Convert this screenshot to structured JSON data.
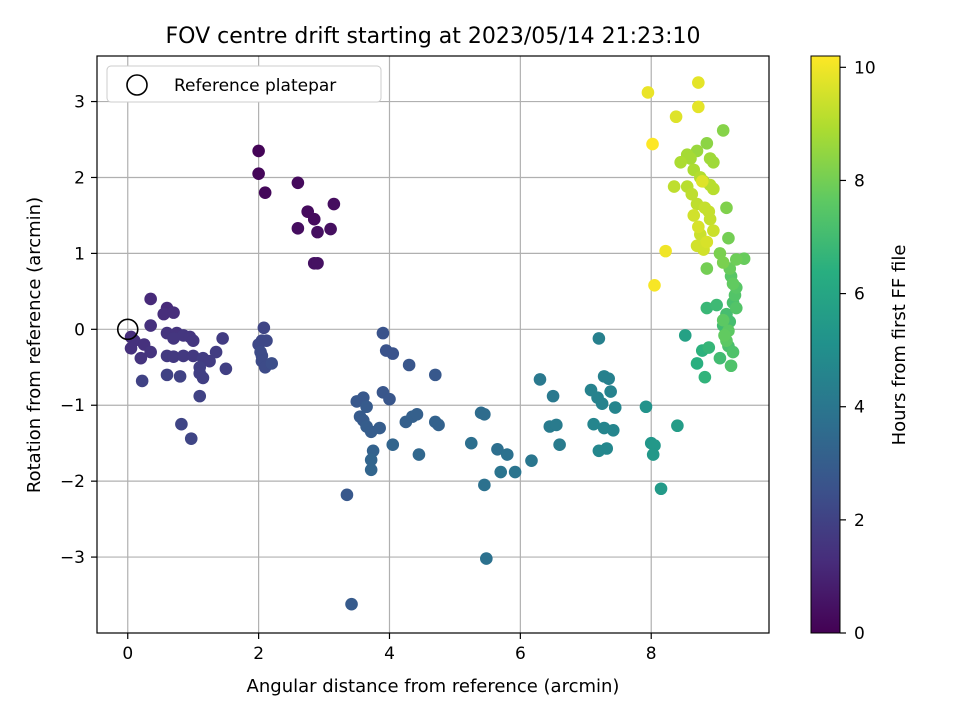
{
  "chart_data": {
    "type": "scatter",
    "title": "FOV centre drift starting at 2023/05/14 21:23:10",
    "xlabel": "Angular distance from reference (arcmin)",
    "ylabel": "Rotation from reference (arcmin)",
    "xlim": [
      -0.47,
      9.8
    ],
    "ylim": [
      -4.0,
      3.6
    ],
    "x_ticks": [
      0,
      2,
      4,
      6,
      8
    ],
    "y_ticks": [
      -3,
      -2,
      -1,
      0,
      1,
      2,
      3
    ],
    "x_tick_labels": [
      "0",
      "2",
      "4",
      "6",
      "8"
    ],
    "y_tick_labels": [
      "−3",
      "−2",
      "−1",
      "0",
      "1",
      "2",
      "3"
    ],
    "grid": true,
    "legend": {
      "placement": "top-left",
      "label": "Reference platepar"
    },
    "reference_point": {
      "x": 0,
      "y": 0
    },
    "colorbar": {
      "label": "Hours from first FF file",
      "range": [
        0,
        10.2
      ],
      "ticks": [
        0,
        2,
        4,
        6,
        8,
        10
      ],
      "tick_labels": [
        "0",
        "2",
        "4",
        "6",
        "8",
        "10"
      ],
      "colormap": "viridis"
    },
    "points": [
      [
        2.0,
        2.35,
        0.1
      ],
      [
        2.0,
        2.05,
        0.15
      ],
      [
        2.1,
        1.8,
        0.2
      ],
      [
        2.6,
        1.93,
        0.25
      ],
      [
        2.75,
        1.55,
        0.3
      ],
      [
        2.85,
        1.45,
        0.3
      ],
      [
        3.15,
        1.65,
        0.35
      ],
      [
        2.6,
        1.33,
        0.35
      ],
      [
        2.9,
        1.28,
        0.4
      ],
      [
        3.1,
        1.32,
        0.4
      ],
      [
        2.85,
        0.87,
        0.45
      ],
      [
        2.9,
        0.87,
        0.45
      ],
      [
        0.35,
        0.4,
        1.2
      ],
      [
        0.6,
        0.28,
        1.2
      ],
      [
        0.55,
        0.2,
        1.3
      ],
      [
        0.7,
        0.22,
        1.3
      ],
      [
        0.05,
        -0.1,
        1.3
      ],
      [
        0.1,
        -0.15,
        1.4
      ],
      [
        0.05,
        -0.25,
        1.4
      ],
      [
        0.25,
        -0.2,
        1.4
      ],
      [
        0.35,
        0.05,
        1.4
      ],
      [
        0.35,
        -0.3,
        1.5
      ],
      [
        0.2,
        -0.38,
        1.5
      ],
      [
        0.6,
        -0.05,
        1.5
      ],
      [
        0.75,
        -0.05,
        1.5
      ],
      [
        0.85,
        -0.08,
        1.6
      ],
      [
        0.95,
        -0.1,
        1.6
      ],
      [
        0.7,
        -0.12,
        1.6
      ],
      [
        1.0,
        -0.15,
        1.6
      ],
      [
        0.6,
        -0.35,
        1.7
      ],
      [
        0.7,
        -0.36,
        1.7
      ],
      [
        0.85,
        -0.35,
        1.7
      ],
      [
        1.0,
        -0.35,
        1.7
      ],
      [
        1.15,
        -0.38,
        1.8
      ],
      [
        1.25,
        -0.42,
        1.8
      ],
      [
        1.35,
        -0.3,
        1.8
      ],
      [
        1.45,
        -0.12,
        1.8
      ],
      [
        1.5,
        -0.52,
        1.9
      ],
      [
        1.1,
        -0.5,
        1.9
      ],
      [
        1.1,
        -0.58,
        1.9
      ],
      [
        1.15,
        -0.64,
        1.9
      ],
      [
        0.6,
        -0.6,
        2.0
      ],
      [
        0.8,
        -0.62,
        2.0
      ],
      [
        0.22,
        -0.68,
        2.0
      ],
      [
        1.1,
        -0.88,
        2.0
      ],
      [
        0.82,
        -1.25,
        2.1
      ],
      [
        0.97,
        -1.44,
        2.1
      ],
      [
        2.08,
        0.02,
        2.1
      ],
      [
        2.05,
        -0.15,
        2.2
      ],
      [
        2.12,
        -0.15,
        2.2
      ],
      [
        2.0,
        -0.2,
        2.2
      ],
      [
        2.03,
        -0.3,
        2.3
      ],
      [
        2.05,
        -0.35,
        2.3
      ],
      [
        2.05,
        -0.42,
        2.3
      ],
      [
        2.1,
        -0.5,
        2.3
      ],
      [
        2.2,
        -0.45,
        2.4
      ],
      [
        3.9,
        -0.05,
        2.6
      ],
      [
        3.95,
        -0.28,
        2.6
      ],
      [
        4.05,
        -0.32,
        2.6
      ],
      [
        4.3,
        -0.47,
        2.7
      ],
      [
        3.9,
        -0.83,
        2.7
      ],
      [
        4.0,
        -0.92,
        2.7
      ],
      [
        4.7,
        -0.6,
        2.8
      ],
      [
        3.5,
        -0.95,
        2.8
      ],
      [
        3.6,
        -0.9,
        2.8
      ],
      [
        3.65,
        -1.02,
        2.9
      ],
      [
        3.55,
        -1.15,
        2.9
      ],
      [
        3.6,
        -1.2,
        2.9
      ],
      [
        3.65,
        -1.28,
        3.0
      ],
      [
        3.72,
        -1.35,
        3.0
      ],
      [
        3.85,
        -1.3,
        3.0
      ],
      [
        4.25,
        -1.22,
        3.1
      ],
      [
        4.35,
        -1.15,
        3.1
      ],
      [
        4.42,
        -1.12,
        3.1
      ],
      [
        4.7,
        -1.22,
        3.2
      ],
      [
        4.75,
        -1.26,
        3.2
      ],
      [
        3.75,
        -1.6,
        3.2
      ],
      [
        3.72,
        -1.72,
        3.3
      ],
      [
        3.72,
        -1.85,
        3.3
      ],
      [
        4.05,
        -1.52,
        3.3
      ],
      [
        4.45,
        -1.65,
        3.4
      ],
      [
        3.35,
        -2.18,
        2.8
      ],
      [
        3.42,
        -3.62,
        2.9
      ],
      [
        5.4,
        -1.1,
        3.6
      ],
      [
        5.45,
        -1.12,
        3.6
      ],
      [
        5.25,
        -1.5,
        3.7
      ],
      [
        5.65,
        -1.58,
        3.7
      ],
      [
        5.8,
        -1.65,
        3.8
      ],
      [
        5.45,
        -2.05,
        3.8
      ],
      [
        5.7,
        -1.88,
        3.9
      ],
      [
        5.92,
        -1.88,
        3.9
      ],
      [
        6.17,
        -1.73,
        4.0
      ],
      [
        5.48,
        -3.02,
        3.8
      ],
      [
        6.3,
        -0.66,
        4.1
      ],
      [
        6.5,
        -0.88,
        4.1
      ],
      [
        6.45,
        -1.28,
        4.2
      ],
      [
        6.55,
        -1.26,
        4.2
      ],
      [
        6.6,
        -1.52,
        4.2
      ],
      [
        7.2,
        -0.12,
        4.4
      ],
      [
        7.28,
        -0.62,
        4.4
      ],
      [
        7.35,
        -0.65,
        4.4
      ],
      [
        7.08,
        -0.8,
        4.5
      ],
      [
        7.18,
        -0.9,
        4.5
      ],
      [
        7.25,
        -0.98,
        4.5
      ],
      [
        7.38,
        -0.82,
        4.5
      ],
      [
        7.45,
        -1.03,
        4.6
      ],
      [
        7.12,
        -1.25,
        4.6
      ],
      [
        7.28,
        -1.3,
        4.6
      ],
      [
        7.42,
        -1.33,
        4.6
      ],
      [
        7.2,
        -1.6,
        4.7
      ],
      [
        7.32,
        -1.57,
        4.7
      ],
      [
        7.92,
        -1.02,
        5.2
      ],
      [
        8.0,
        -1.5,
        5.3
      ],
      [
        8.05,
        -1.53,
        5.4
      ],
      [
        8.03,
        -1.65,
        5.4
      ],
      [
        8.15,
        -2.1,
        5.5
      ],
      [
        8.4,
        -1.27,
        5.6
      ],
      [
        8.52,
        -0.08,
        5.8
      ],
      [
        8.7,
        -0.45,
        6.4
      ],
      [
        8.78,
        -0.28,
        6.5
      ],
      [
        8.82,
        -0.63,
        6.6
      ],
      [
        8.88,
        -0.24,
        6.7
      ],
      [
        8.85,
        0.28,
        6.8
      ],
      [
        9.0,
        0.32,
        6.9
      ],
      [
        9.05,
        -0.38,
        7.0
      ],
      [
        9.1,
        0.05,
        7.0
      ],
      [
        9.15,
        0.2,
        7.1
      ],
      [
        9.2,
        0.1,
        7.1
      ],
      [
        9.25,
        0.35,
        7.2
      ],
      [
        9.18,
        -0.22,
        7.2
      ],
      [
        9.22,
        -0.48,
        7.3
      ],
      [
        9.25,
        -0.3,
        7.3
      ],
      [
        9.3,
        0.28,
        7.4
      ],
      [
        9.28,
        0.45,
        7.4
      ],
      [
        9.3,
        0.55,
        7.5
      ],
      [
        9.22,
        0.7,
        7.5
      ],
      [
        9.18,
        -0.02,
        7.6
      ],
      [
        9.15,
        -0.15,
        7.6
      ],
      [
        9.1,
        0.12,
        7.6
      ],
      [
        9.12,
        -0.08,
        7.7
      ],
      [
        9.25,
        0.6,
        7.7
      ],
      [
        9.2,
        0.8,
        7.8
      ],
      [
        9.42,
        0.93,
        7.8
      ],
      [
        9.3,
        0.92,
        7.9
      ],
      [
        8.85,
        0.8,
        8.0
      ],
      [
        9.18,
        1.2,
        8.0
      ],
      [
        9.05,
        1.0,
        8.1
      ],
      [
        9.1,
        0.88,
        8.1
      ],
      [
        9.15,
        1.6,
        8.2
      ],
      [
        9.1,
        2.62,
        8.3
      ],
      [
        8.85,
        2.45,
        8.4
      ],
      [
        8.7,
        2.35,
        8.6
      ],
      [
        8.9,
        2.25,
        8.7
      ],
      [
        8.95,
        2.2,
        8.7
      ],
      [
        8.55,
        2.3,
        8.8
      ],
      [
        8.6,
        2.25,
        8.8
      ],
      [
        8.45,
        2.2,
        8.9
      ],
      [
        8.65,
        2.1,
        8.9
      ],
      [
        8.75,
        2.0,
        9.0
      ],
      [
        8.8,
        1.95,
        9.0
      ],
      [
        8.9,
        1.9,
        9.1
      ],
      [
        8.95,
        1.85,
        9.1
      ],
      [
        8.55,
        1.88,
        9.1
      ],
      [
        8.35,
        1.88,
        9.2
      ],
      [
        8.62,
        1.78,
        9.2
      ],
      [
        8.7,
        1.65,
        9.2
      ],
      [
        8.82,
        1.6,
        9.3
      ],
      [
        8.88,
        1.55,
        9.3
      ],
      [
        8.9,
        1.45,
        9.3
      ],
      [
        8.95,
        1.3,
        9.4
      ],
      [
        8.75,
        1.25,
        9.4
      ],
      [
        8.7,
        1.1,
        9.5
      ],
      [
        8.8,
        1.05,
        9.5
      ],
      [
        8.65,
        1.5,
        9.5
      ],
      [
        8.72,
        1.35,
        9.6
      ],
      [
        8.85,
        1.15,
        9.6
      ],
      [
        8.78,
        1.95,
        9.7
      ],
      [
        8.38,
        2.8,
        9.7
      ],
      [
        8.72,
        2.93,
        9.8
      ],
      [
        8.72,
        3.25,
        9.8
      ],
      [
        7.95,
        3.12,
        9.9
      ],
      [
        8.22,
        1.03,
        10.0
      ],
      [
        8.05,
        0.58,
        10.1
      ],
      [
        8.02,
        2.44,
        10.2
      ]
    ]
  }
}
